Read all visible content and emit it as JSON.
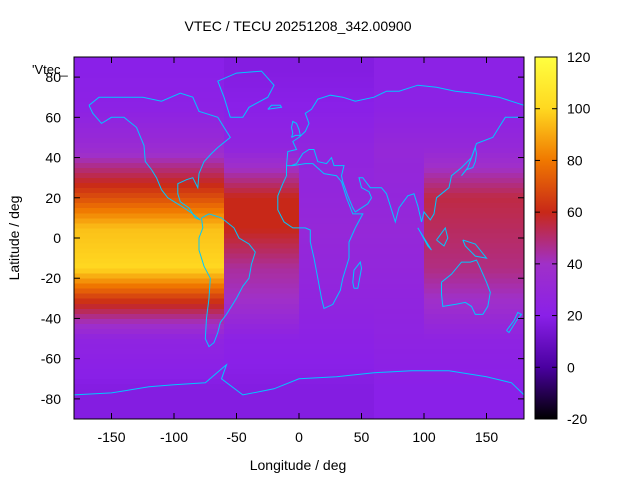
{
  "chart_data": {
    "type": "heatmap",
    "title": "VTEC / TECU 20251208_342.00900",
    "xlabel": "Longitude / deg",
    "ylabel": "Latitude / deg",
    "legend_label": "'Vtec_",
    "xlim": [
      -180,
      180
    ],
    "ylim": [
      -90,
      90
    ],
    "x_ticks": [
      -150,
      -100,
      -50,
      0,
      50,
      100,
      150
    ],
    "y_ticks": [
      -80,
      -60,
      -40,
      -20,
      0,
      20,
      40,
      60,
      80
    ],
    "colorbar": {
      "range": [
        -20,
        120
      ],
      "ticks": [
        -20,
        0,
        20,
        40,
        60,
        80,
        100,
        120
      ],
      "palette": [
        "#000000",
        "#4a00a0",
        "#8a20e8",
        "#a030c8",
        "#c82818",
        "#f07800",
        "#ffd820",
        "#ffff40"
      ]
    },
    "grid": false,
    "coastline_color": "#00c8ff",
    "grid_spacing_deg": {
      "lon": 5,
      "lat": 2.5
    },
    "series": [
      {
        "lat": 85,
        "vtec_by_lon_band": {
          "-180:-60": 20,
          "-60:60": 18,
          "60:180": 22
        }
      },
      {
        "lat": 65,
        "vtec_by_lon_band": {
          "-180:-60": 22,
          "-60:60": 20,
          "60:180": 22
        }
      },
      {
        "lat": 45,
        "vtec_by_lon_band": {
          "-180:-60": 34,
          "-60:60": 26,
          "60:180": 30
        }
      },
      {
        "lat": 20,
        "vtec_by_lon_band": {
          "-180:-60": 70,
          "-60:0": 60,
          "0:100": 28,
          "100:180": 55
        }
      },
      {
        "lat": 5,
        "vtec_by_lon_band": {
          "-180:-60": 95,
          "-60:0": 60,
          "0:100": 30,
          "100:180": 52
        }
      },
      {
        "lat": -15,
        "vtec_by_lon_band": {
          "-180:-60": 100,
          "-60:0": 45,
          "0:100": 28,
          "100:180": 48
        }
      },
      {
        "lat": -30,
        "vtec_by_lon_band": {
          "-180:-60": 65,
          "-60:0": 40,
          "0:100": 26,
          "100:180": 40
        }
      },
      {
        "lat": -50,
        "vtec_by_lon_band": {
          "-180:-60": 25,
          "-60:60": 22,
          "60:180": 24
        }
      },
      {
        "lat": -75,
        "vtec_by_lon_band": {
          "-180:-60": 18,
          "-60:60": 18,
          "60:180": 20
        }
      }
    ]
  }
}
